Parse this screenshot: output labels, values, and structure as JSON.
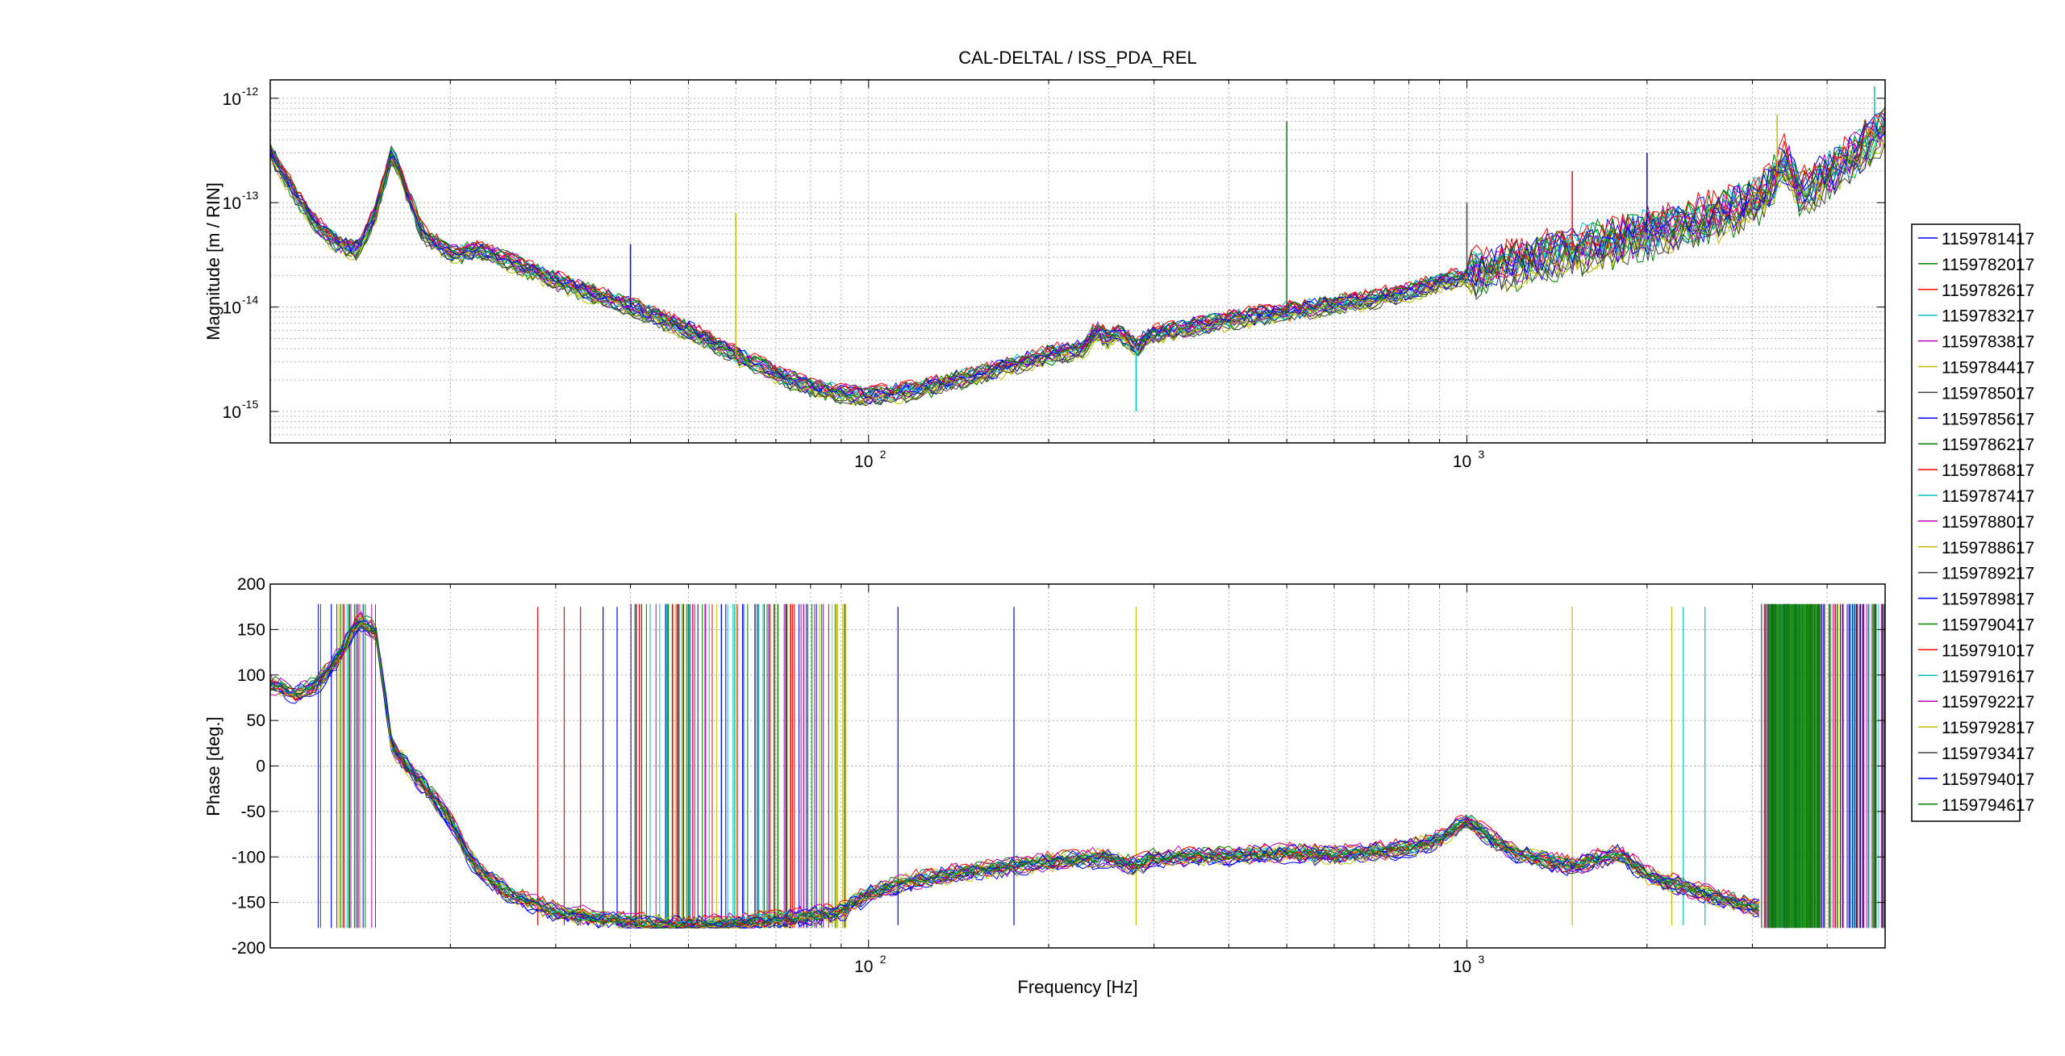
{
  "chart_data": {
    "type": "line",
    "title": "CAL-DELTAL / ISS_PDA_REL",
    "xlabel": "Frequency [Hz]",
    "x_scale": "log",
    "xlim": [
      10,
      5000
    ],
    "x_ticks": [
      {
        "value": 100,
        "base": "10",
        "exp": "2"
      },
      {
        "value": 1000,
        "base": "10",
        "exp": "3"
      }
    ],
    "grid": true,
    "legend_position": "outside-right",
    "legend": [
      {
        "name": "1159781417",
        "color": "#0000ff"
      },
      {
        "name": "1159782017",
        "color": "#008000"
      },
      {
        "name": "1159782617",
        "color": "#ff0000"
      },
      {
        "name": "1159783217",
        "color": "#00bfbf"
      },
      {
        "name": "1159783817",
        "color": "#bf00bf"
      },
      {
        "name": "1159784417",
        "color": "#bfbf00"
      },
      {
        "name": "1159785017",
        "color": "#404040"
      },
      {
        "name": "1159785617",
        "color": "#0000ff"
      },
      {
        "name": "1159786217",
        "color": "#008000"
      },
      {
        "name": "1159786817",
        "color": "#ff0000"
      },
      {
        "name": "1159787417",
        "color": "#00bfbf"
      },
      {
        "name": "1159788017",
        "color": "#bf00bf"
      },
      {
        "name": "1159788617",
        "color": "#bfbf00"
      },
      {
        "name": "1159789217",
        "color": "#404040"
      },
      {
        "name": "1159789817",
        "color": "#0000ff"
      },
      {
        "name": "1159790417",
        "color": "#008000"
      },
      {
        "name": "1159791017",
        "color": "#ff0000"
      },
      {
        "name": "1159791617",
        "color": "#00bfbf"
      },
      {
        "name": "1159792217",
        "color": "#bf00bf"
      },
      {
        "name": "1159792817",
        "color": "#bfbf00"
      },
      {
        "name": "1159793417",
        "color": "#404040"
      },
      {
        "name": "1159794017",
        "color": "#0000ff"
      },
      {
        "name": "1159794617",
        "color": "#008000"
      }
    ],
    "magnitude": {
      "ylabel": "Magnitude [m / RIN]",
      "y_scale": "log",
      "ylim": [
        5e-16,
        1.5e-12
      ],
      "y_ticks": [
        {
          "value": 1e-15,
          "base": "10",
          "exp": "-15"
        },
        {
          "value": 1e-14,
          "base": "10",
          "exp": "-14"
        },
        {
          "value": 1e-13,
          "base": "10",
          "exp": "-13"
        },
        {
          "value": 1e-12,
          "base": "10",
          "exp": "-12"
        }
      ],
      "trend": {
        "x": [
          10,
          11,
          12,
          13,
          14,
          15,
          16,
          18,
          20,
          22,
          25,
          30,
          40,
          50,
          60,
          70,
          80,
          90,
          100,
          120,
          150,
          200,
          230,
          240,
          250,
          260,
          270,
          280,
          290,
          300,
          400,
          500,
          600,
          700,
          800,
          900,
          1000,
          1200,
          1500,
          2000,
          2500,
          3000,
          3200,
          3300,
          3400,
          3600,
          4000,
          4500,
          5000
        ],
        "y": [
          3e-13,
          1.2e-13,
          6e-14,
          4e-14,
          3.5e-14,
          8e-14,
          3e-13,
          5e-14,
          3.2e-14,
          3.5e-14,
          2.8e-14,
          1.8e-14,
          1e-14,
          6e-15,
          3.5e-15,
          2.3e-15,
          1.7e-15,
          1.5e-15,
          1.4e-15,
          1.6e-15,
          2.2e-15,
          3.5e-15,
          4e-15,
          6e-15,
          5e-15,
          5.5e-15,
          5e-15,
          4e-15,
          5e-15,
          5.5e-15,
          7.5e-15,
          9e-15,
          1.05e-14,
          1.2e-14,
          1.4e-14,
          1.7e-14,
          2e-14,
          2.6e-14,
          3.5e-14,
          5e-14,
          7e-14,
          1e-13,
          1.3e-13,
          2e-13,
          2.5e-13,
          1.2e-13,
          1.8e-13,
          3e-13,
          5e-13
        ]
      },
      "spikes": [
        {
          "x": 40,
          "y": 4e-14
        },
        {
          "x": 60,
          "y": 8e-14
        },
        {
          "x": 280,
          "y": 1e-15
        },
        {
          "x": 500,
          "y": 6e-13
        },
        {
          "x": 1000,
          "y": 1e-13
        },
        {
          "x": 1500,
          "y": 2e-13
        },
        {
          "x": 2000,
          "y": 3e-13
        },
        {
          "x": 3300,
          "y": 7e-13
        },
        {
          "x": 4800,
          "y": 1.3e-12
        }
      ]
    },
    "phase": {
      "ylabel": "Phase [deg.]",
      "y_scale": "linear",
      "ylim": [
        -200,
        200
      ],
      "y_ticks": [
        -200,
        -150,
        -100,
        -50,
        0,
        50,
        100,
        150,
        200
      ],
      "trend": {
        "x": [
          10,
          11,
          12,
          13,
          14,
          15,
          16,
          18,
          20,
          22,
          25,
          30,
          40,
          50,
          60,
          70,
          80,
          90,
          100,
          120,
          150,
          200,
          250,
          280,
          300,
          400,
          500,
          600,
          800,
          900,
          1000,
          1100,
          1200,
          1500,
          1800,
          2000,
          2500,
          3000,
          5000
        ],
        "y": [
          90,
          80,
          90,
          120,
          160,
          150,
          20,
          -20,
          -60,
          -110,
          -140,
          -160,
          -172,
          -175,
          -172,
          -168,
          -165,
          -160,
          -140,
          -125,
          -115,
          -105,
          -100,
          -110,
          -100,
          -98,
          -95,
          -98,
          -90,
          -80,
          -60,
          -80,
          -95,
          -110,
          -95,
          -120,
          -140,
          -155,
          -160
        ]
      },
      "wrap_bands_hz": [
        [
          12,
          15
        ],
        [
          40,
          92
        ],
        [
          3100,
          5000
        ]
      ],
      "wrap_lines_hz": [
        28,
        31,
        33,
        36,
        38,
        112,
        175,
        280,
        1500,
        2200,
        2300,
        2500
      ]
    }
  }
}
